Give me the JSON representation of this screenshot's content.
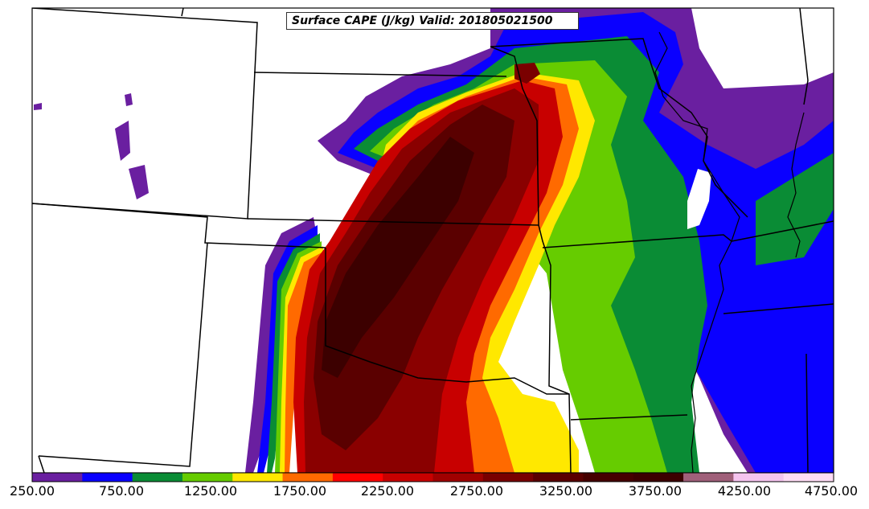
{
  "title": "Surface CAPE (J/kg) Valid: 201805021500",
  "colorbar": {
    "colors": [
      "#6a1fa0",
      "#0a00ff",
      "#0a8c35",
      "#66cc00",
      "#ffe800",
      "#ff6a00",
      "#ff0000",
      "#c80000",
      "#a00000",
      "#7a0000",
      "#5a0000",
      "#460000",
      "#3c0000",
      "#a0607a",
      "#f5c4ef",
      "#ffdcf5"
    ],
    "tick_labels": [
      "250.00",
      "750.00",
      "1250.00",
      "1750.00",
      "2250.00",
      "2750.00",
      "3250.00",
      "3750.00",
      "4250.00",
      "4750.00"
    ]
  }
}
